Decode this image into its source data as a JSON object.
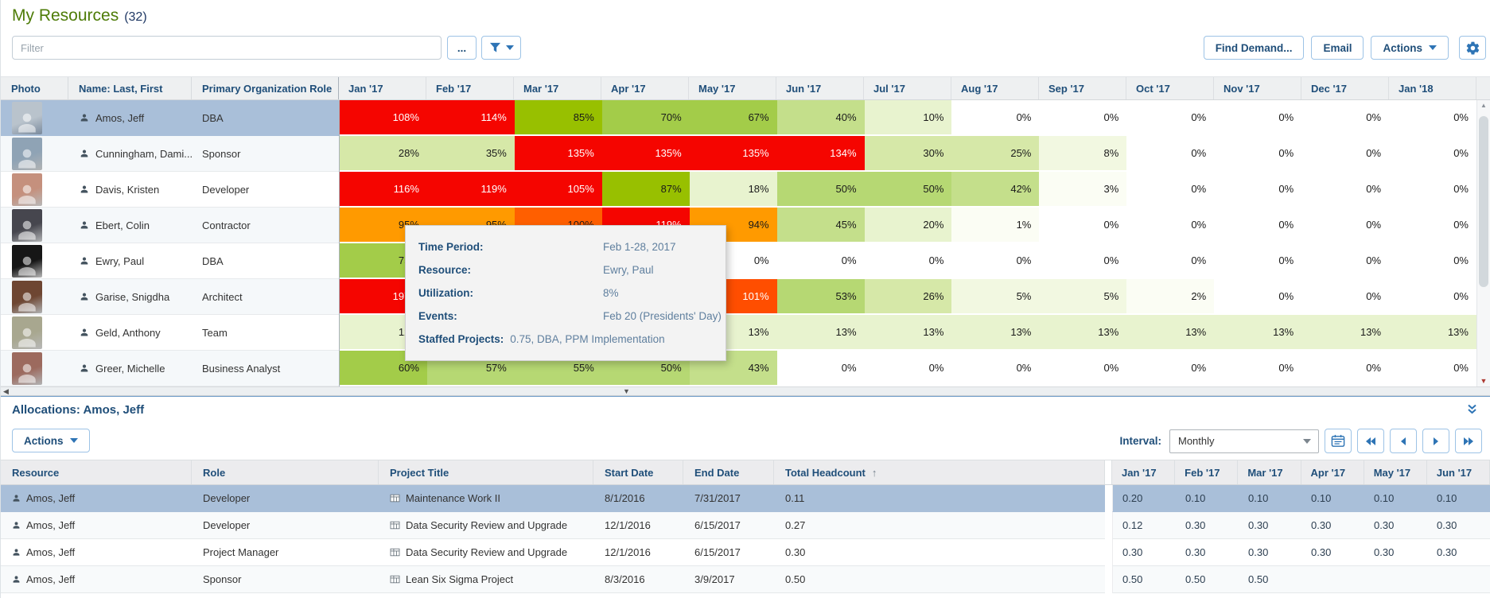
{
  "colors": {
    "accent": "#2e74b5",
    "header_text": "#1f4e79",
    "title_green": "#4e7c08",
    "selected_row": "#a9bfd9",
    "heat_palette": [
      {
        "min": 105,
        "bg": "#f50500",
        "fg": "#ffffff"
      },
      {
        "min": 101,
        "bg": "#ff4e00",
        "fg": "#ffffff"
      },
      {
        "min": 98,
        "bg": "#ff5f00",
        "fg": "#1a1a1a"
      },
      {
        "min": 90,
        "bg": "#ff9a00",
        "fg": "#1a1a1a"
      },
      {
        "min": 80,
        "bg": "#98c000",
        "fg": "#1a1a1a"
      },
      {
        "min": 58,
        "bg": "#a3cc49",
        "fg": "#1a1a1a"
      },
      {
        "min": 48,
        "bg": "#b6d873",
        "fg": "#1a1a1a"
      },
      {
        "min": 38,
        "bg": "#c4df8b",
        "fg": "#1a1a1a"
      },
      {
        "min": 24,
        "bg": "#d6e8a8",
        "fg": "#1a1a1a"
      },
      {
        "min": 10,
        "bg": "#e8f3cf",
        "fg": "#1a1a1a"
      },
      {
        "min": 4,
        "bg": "#f2f8e1",
        "fg": "#1a1a1a"
      },
      {
        "min": 1,
        "bg": "#fbfdf4",
        "fg": "#1a1a1a"
      },
      {
        "min": 0,
        "bg": "#ffffff",
        "fg": "#1a1a1a"
      }
    ]
  },
  "page": {
    "title": "My Resources",
    "count": "(32)"
  },
  "top_toolbar": {
    "filter_placeholder": "Filter",
    "more_button": "...",
    "find_demand_button": "Find Demand...",
    "email_button": "Email",
    "actions_button": "Actions"
  },
  "resources_grid": {
    "columns": {
      "photo": "Photo",
      "name": "Name: Last, First",
      "role": "Primary Organization Role"
    },
    "months": [
      "Jan '17",
      "Feb '17",
      "Mar '17",
      "Apr '17",
      "May '17",
      "Jun '17",
      "Jul '17",
      "Aug '17",
      "Sep '17",
      "Oct '17",
      "Nov '17",
      "Dec '17",
      "Jan '18"
    ],
    "rows": [
      {
        "name": "Amos, Jeff",
        "role": "DBA",
        "selected": true,
        "values": [
          108,
          114,
          85,
          70,
          67,
          40,
          10,
          0,
          0,
          0,
          0,
          0,
          0
        ]
      },
      {
        "name": "Cunningham, Dami...",
        "role": "Sponsor",
        "values": [
          28,
          35,
          135,
          135,
          135,
          134,
          30,
          25,
          8,
          0,
          0,
          0,
          0
        ]
      },
      {
        "name": "Davis, Kristen",
        "role": "Developer",
        "values": [
          116,
          119,
          105,
          87,
          18,
          50,
          50,
          42,
          3,
          0,
          0,
          0,
          0
        ]
      },
      {
        "name": "Ebert, Colin",
        "role": "Contractor",
        "values": [
          95,
          95,
          100,
          119,
          94,
          45,
          20,
          1,
          0,
          0,
          0,
          0,
          0
        ]
      },
      {
        "name": "Ewry, Paul",
        "role": "DBA",
        "values": [
          75,
          8,
          0,
          0,
          0,
          0,
          0,
          0,
          0,
          0,
          0,
          0,
          0
        ]
      },
      {
        "name": "Garise, Snigdha",
        "role": "Architect",
        "values": [
          197,
          {
            "bg": "#f50500"
          },
          {
            "bg": "#ffffff"
          },
          {
            "bg": "#ffffff"
          },
          101,
          53,
          26,
          5,
          5,
          2,
          0,
          0,
          0
        ]
      },
      {
        "name": "Geld, Anthony",
        "role": "Team",
        "values": [
          12,
          {
            "bg": "#ffffff"
          },
          {
            "bg": "#ffffff"
          },
          {
            "bg": "#ffffff"
          },
          13,
          13,
          13,
          13,
          13,
          13,
          13,
          13,
          13
        ]
      },
      {
        "name": "Greer, Michelle",
        "role": "Business Analyst",
        "values": [
          60,
          57,
          55,
          50,
          43,
          0,
          0,
          0,
          0,
          0,
          0,
          0,
          0
        ]
      }
    ]
  },
  "tooltip": {
    "lines": [
      {
        "label": "Time Period:",
        "value": "Feb 1-28, 2017"
      },
      {
        "label": "Resource:",
        "value": "Ewry, Paul"
      },
      {
        "label": "Utilization:",
        "value": "8%"
      },
      {
        "label": "Events:",
        "value": "Feb 20 (Presidents' Day)"
      },
      {
        "label": "Staffed Projects:",
        "value": "0.75, DBA, PPM Implementation",
        "tight": true
      }
    ]
  },
  "allocations": {
    "title": "Allocations: Amos, Jeff",
    "actions_button": "Actions",
    "interval_label": "Interval:",
    "interval_value": "Monthly",
    "columns": [
      "Resource",
      "Role",
      "Project Title",
      "Start Date",
      "End Date",
      "Total Headcount"
    ],
    "sort_indicator": "↑",
    "months": [
      "Jan '17",
      "Feb '17",
      "Mar '17",
      "Apr '17",
      "May '17",
      "Jun '17"
    ],
    "rows": [
      {
        "resource": "Amos, Jeff",
        "role": "Developer",
        "project": "Maintenance Work II",
        "start": "8/1/2016",
        "end": "7/31/2017",
        "headcount": "0.11",
        "months": [
          "0.20",
          "0.10",
          "0.10",
          "0.10",
          "0.10",
          "0.10"
        ],
        "selected": true
      },
      {
        "resource": "Amos, Jeff",
        "role": "Developer",
        "project": "Data Security Review and Upgrade",
        "start": "12/1/2016",
        "end": "6/15/2017",
        "headcount": "0.27",
        "months": [
          "0.12",
          "0.30",
          "0.30",
          "0.30",
          "0.30",
          "0.30"
        ]
      },
      {
        "resource": "Amos, Jeff",
        "role": "Project Manager",
        "project": "Data Security Review and Upgrade",
        "start": "12/1/2016",
        "end": "6/15/2017",
        "headcount": "0.30",
        "months": [
          "0.30",
          "0.30",
          "0.30",
          "0.30",
          "0.30",
          "0.30"
        ]
      },
      {
        "resource": "Amos, Jeff",
        "role": "Sponsor",
        "project": "Lean Six Sigma Project",
        "start": "8/3/2016",
        "end": "3/9/2017",
        "headcount": "0.50",
        "months": [
          "0.50",
          "0.50",
          "0.50",
          "",
          "",
          ""
        ]
      }
    ]
  }
}
